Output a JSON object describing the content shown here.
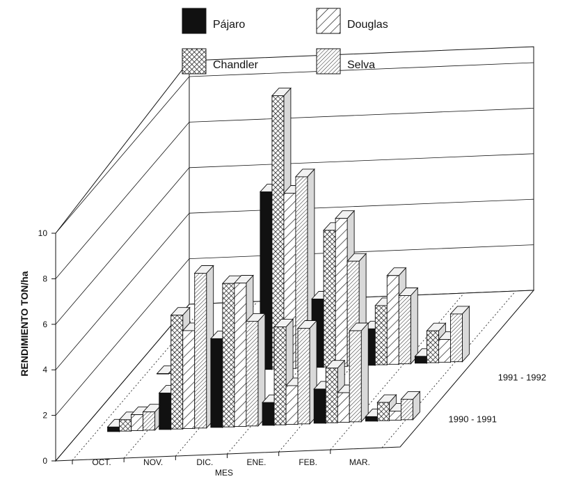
{
  "chart_data": {
    "type": "bar",
    "subtype": "3d-grouped-bar",
    "title": "",
    "xlabel": "MES",
    "ylabel": "RENDIMIENTO TON/ha",
    "ylim": [
      0,
      10
    ],
    "yticks": [
      "0",
      "2",
      "4",
      "6",
      "8",
      "10"
    ],
    "categories": [
      "OCT.",
      "NOV.",
      "DIC.",
      "ENE.",
      "FEB.",
      "MAR."
    ],
    "depth_series": [
      "1990 - 1991",
      "1991 - 1992"
    ],
    "legend": {
      "placement": "top-center",
      "entries": [
        {
          "name": "Pájaro",
          "pattern": "solid-black"
        },
        {
          "name": "Douglas",
          "pattern": "diagonal-hatch"
        },
        {
          "name": "Chandler",
          "pattern": "crosshatch"
        },
        {
          "name": "Selva",
          "pattern": "fine-diagonal-hatch"
        }
      ]
    },
    "series_order": [
      "Pájaro",
      "Chandler",
      "Douglas",
      "Selva"
    ],
    "data": {
      "1990 - 1991": {
        "Pájaro": [
          0.2,
          1.6,
          3.9,
          1.0,
          1.5,
          0.2
        ],
        "Chandler": [
          0.5,
          5.0,
          6.3,
          4.3,
          2.4,
          0.8
        ],
        "Douglas": [
          0.7,
          4.3,
          6.3,
          1.7,
          1.3,
          0.4
        ],
        "Selva": [
          0.8,
          6.8,
          4.6,
          4.2,
          4.0,
          0.9
        ]
      },
      "1991 - 1992": {
        "Pájaro": [
          0,
          0,
          7.8,
          3.0,
          1.6,
          0.3
        ],
        "Chandler": [
          0,
          0,
          12.0,
          6.0,
          2.6,
          1.4
        ],
        "Douglas": [
          0,
          0,
          7.7,
          6.5,
          3.9,
          1.0
        ],
        "Selva": [
          0,
          0,
          8.4,
          4.6,
          3.0,
          2.1
        ]
      }
    },
    "colors": {
      "background": "#ffffff",
      "ink": "#111111",
      "top": "#f2f2f2",
      "side": "#d9d9d9"
    }
  }
}
